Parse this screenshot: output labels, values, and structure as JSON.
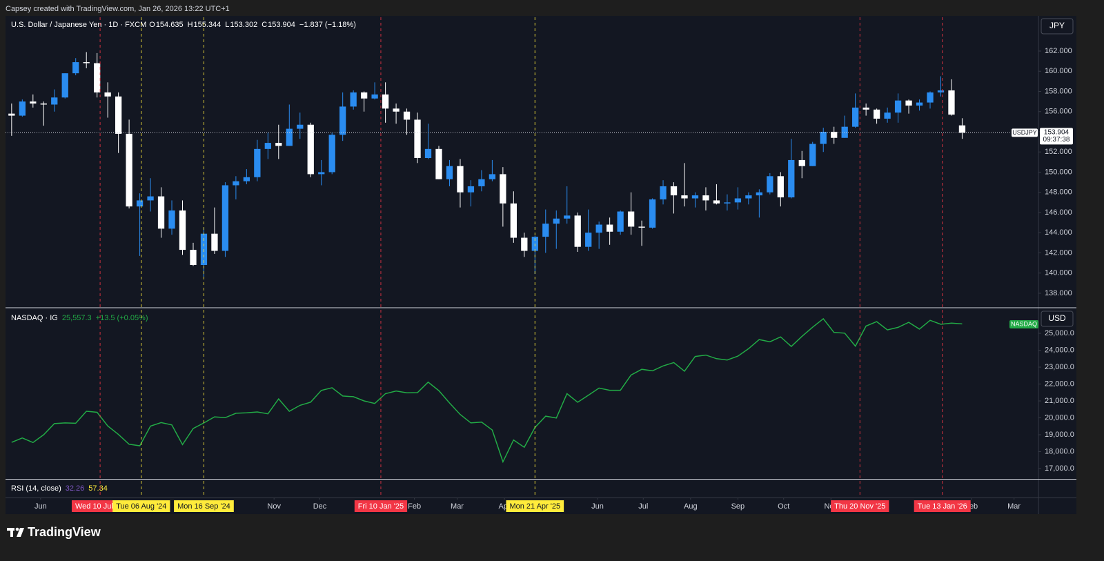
{
  "caption": "Capsey created with TradingView.com, Jan 26, 2026 13:22 UTC+1",
  "brand": "TradingView",
  "chart_data": [
    {
      "type": "candlestick",
      "title": "U.S. Dollar / Japanese Yen · 1D · FXCM",
      "legend_keys": [
        "O",
        "H",
        "L",
        "C"
      ],
      "change_label": "−1.837 (−1.18%)",
      "currency": "JPY",
      "symbol": "USDJPY",
      "countdown": "09:37:38",
      "up_color": "#2a8cf0",
      "down_color": "#ffffff",
      "x": [
        "2024-05-13",
        "2024-05-20",
        "2024-05-27",
        "2024-06-03",
        "2024-06-10",
        "2024-06-17",
        "2024-06-24",
        "2024-07-01",
        "2024-07-08",
        "2024-07-15",
        "2024-07-22",
        "2024-07-29",
        "2024-08-05",
        "2024-08-12",
        "2024-08-19",
        "2024-08-26",
        "2024-09-02",
        "2024-09-09",
        "2024-09-16",
        "2024-09-23",
        "2024-09-30",
        "2024-10-07",
        "2024-10-14",
        "2024-10-21",
        "2024-10-28",
        "2024-11-04",
        "2024-11-11",
        "2024-11-18",
        "2024-11-25",
        "2024-12-02",
        "2024-12-09",
        "2024-12-16",
        "2024-12-23",
        "2024-12-30",
        "2025-01-06",
        "2025-01-13",
        "2025-01-20",
        "2025-01-27",
        "2025-02-03",
        "2025-02-10",
        "2025-02-17",
        "2025-02-24",
        "2025-03-03",
        "2025-03-10",
        "2025-03-17",
        "2025-03-24",
        "2025-03-31",
        "2025-04-07",
        "2025-04-14",
        "2025-04-21",
        "2025-04-28",
        "2025-05-05",
        "2025-05-12",
        "2025-05-19",
        "2025-05-26",
        "2025-06-02",
        "2025-06-09",
        "2025-06-16",
        "2025-06-23",
        "2025-06-30",
        "2025-07-07",
        "2025-07-14",
        "2025-07-21",
        "2025-07-28",
        "2025-08-04",
        "2025-08-11",
        "2025-08-18",
        "2025-08-25",
        "2025-09-01",
        "2025-09-08",
        "2025-09-15",
        "2025-09-22",
        "2025-09-29",
        "2025-10-06",
        "2025-10-13",
        "2025-10-20",
        "2025-10-27",
        "2025-11-03",
        "2025-11-10",
        "2025-11-17",
        "2025-11-24",
        "2025-12-01",
        "2025-12-08",
        "2025-12-15",
        "2025-12-22",
        "2025-12-29",
        "2026-01-05",
        "2026-01-12",
        "2026-01-19",
        "2026-01-26"
      ],
      "open": [
        155.8,
        155.6,
        157.0,
        156.8,
        156.7,
        157.4,
        159.8,
        160.9,
        160.8,
        157.9,
        157.5,
        153.8,
        146.6,
        147.2,
        147.6,
        144.4,
        146.2,
        142.3,
        140.8,
        143.9,
        142.2,
        148.7,
        149.1,
        149.5,
        152.3,
        152.9,
        152.6,
        154.3,
        154.7,
        149.8,
        150.0,
        153.7,
        156.5,
        157.9,
        157.3,
        157.7,
        156.3,
        156.0,
        155.2,
        151.4,
        152.3,
        149.3,
        150.6,
        148.0,
        148.6,
        149.3,
        149.8,
        146.9,
        143.5,
        142.2,
        143.6,
        144.9,
        145.4,
        145.7,
        142.6,
        144.0,
        144.8,
        144.1,
        146.1,
        144.6,
        144.5,
        147.3,
        148.6,
        147.7,
        147.4,
        147.7,
        147.2,
        146.9,
        147.0,
        147.4,
        147.7,
        148.0,
        149.6,
        147.5,
        151.2,
        150.6,
        152.8,
        154.0,
        153.4,
        154.5,
        156.4,
        156.2,
        155.3,
        155.9,
        157.1,
        156.6,
        156.9,
        157.9,
        158.1,
        154.635
      ],
      "high": [
        156.8,
        157.2,
        157.7,
        157.0,
        158.2,
        159.8,
        161.3,
        161.9,
        161.8,
        158.9,
        157.9,
        155.2,
        147.9,
        149.4,
        148.5,
        147.2,
        147.2,
        143.0,
        144.5,
        146.5,
        149.0,
        149.6,
        150.3,
        153.2,
        153.9,
        154.7,
        156.7,
        155.9,
        154.9,
        151.2,
        153.9,
        157.9,
        158.1,
        158.0,
        158.9,
        158.9,
        156.8,
        156.3,
        155.9,
        154.8,
        152.6,
        151.2,
        151.3,
        149.2,
        150.2,
        151.2,
        150.5,
        148.1,
        144.0,
        143.7,
        146.3,
        146.2,
        148.6,
        146.0,
        146.3,
        145.1,
        145.5,
        146.2,
        148.0,
        145.2,
        147.4,
        149.2,
        149.0,
        150.9,
        148.0,
        148.5,
        148.8,
        147.8,
        148.5,
        148.0,
        148.3,
        149.9,
        150.0,
        153.3,
        152.1,
        153.0,
        154.4,
        154.5,
        155.6,
        157.8,
        156.8,
        156.3,
        156.4,
        157.8,
        157.2,
        157.2,
        158.0,
        159.5,
        159.2,
        155.344
      ],
      "low": [
        153.6,
        155.5,
        156.4,
        154.6,
        156.0,
        157.3,
        159.6,
        160.3,
        157.4,
        155.4,
        151.9,
        146.4,
        141.7,
        146.1,
        143.5,
        143.8,
        141.8,
        140.7,
        139.6,
        141.9,
        141.6,
        147.3,
        148.8,
        149.1,
        151.3,
        151.3,
        152.6,
        153.3,
        149.5,
        148.7,
        149.8,
        153.1,
        156.2,
        156.0,
        157.2,
        154.9,
        154.8,
        153.7,
        150.9,
        151.3,
        149.3,
        148.6,
        146.5,
        146.6,
        148.1,
        149.1,
        144.6,
        143.0,
        141.6,
        139.9,
        142.0,
        142.4,
        144.9,
        142.1,
        142.2,
        142.4,
        142.8,
        143.8,
        143.8,
        142.7,
        144.4,
        146.8,
        145.9,
        146.6,
        146.5,
        146.2,
        146.8,
        146.2,
        146.3,
        146.8,
        145.5,
        147.8,
        146.6,
        147.4,
        149.4,
        150.6,
        152.0,
        152.8,
        153.4,
        154.4,
        155.6,
        154.8,
        154.9,
        154.9,
        155.8,
        156.1,
        156.3,
        157.5,
        155.6,
        153.302
      ],
      "close": [
        155.6,
        157.0,
        156.8,
        156.7,
        157.4,
        159.8,
        160.9,
        160.8,
        157.9,
        157.5,
        153.8,
        146.6,
        147.2,
        147.6,
        144.4,
        146.2,
        142.3,
        140.8,
        143.9,
        142.2,
        148.7,
        149.1,
        149.5,
        152.3,
        152.9,
        152.6,
        154.3,
        154.7,
        149.8,
        150.0,
        153.7,
        156.5,
        157.9,
        157.3,
        157.7,
        156.3,
        156.0,
        155.2,
        151.4,
        152.3,
        149.3,
        150.6,
        148.0,
        148.6,
        149.3,
        149.8,
        146.9,
        143.5,
        142.2,
        143.6,
        144.9,
        145.4,
        145.7,
        142.6,
        144.0,
        144.8,
        144.1,
        146.1,
        144.6,
        144.5,
        147.3,
        148.6,
        147.7,
        147.4,
        147.7,
        147.2,
        146.9,
        147.0,
        147.4,
        147.7,
        148.0,
        149.6,
        147.5,
        151.2,
        150.6,
        152.8,
        154.0,
        153.4,
        154.5,
        156.4,
        156.2,
        155.3,
        155.9,
        157.1,
        156.6,
        156.9,
        157.9,
        158.1,
        155.7,
        153.904
      ],
      "xlim": [
        "2024-05-09",
        "2026-03-17"
      ],
      "xticks": [
        {
          "value": "2024-06-01",
          "label": "Jun"
        },
        {
          "value": "2024-11-01",
          "label": "Nov"
        },
        {
          "value": "2024-12-01",
          "label": "Dec"
        },
        {
          "value": "2025-02-01",
          "label": "Feb"
        },
        {
          "value": "2025-03-01",
          "label": "Mar"
        },
        {
          "value": "2025-04-01",
          "label": "Apr"
        },
        {
          "value": "2025-06-01",
          "label": "Jun"
        },
        {
          "value": "2025-07-01",
          "label": "Jul"
        },
        {
          "value": "2025-08-01",
          "label": "Aug"
        },
        {
          "value": "2025-09-01",
          "label": "Sep"
        },
        {
          "value": "2025-10-01",
          "label": "Oct"
        },
        {
          "value": "2025-11-01",
          "label": "Nov"
        },
        {
          "value": "2026-02-01",
          "label": "Feb"
        },
        {
          "value": "2026-03-01",
          "label": "Mar"
        }
      ],
      "markers": [
        {
          "date": "2024-07-10",
          "label": "Wed 10 Jul '24",
          "color": "#f23645"
        },
        {
          "date": "2024-08-06",
          "label": "Tue 06 Aug '24",
          "color": "#ffeb3b"
        },
        {
          "date": "2024-09-16",
          "label": "Mon 16 Sep '24",
          "color": "#ffeb3b"
        },
        {
          "date": "2025-01-10",
          "label": "Fri 10 Jan '25",
          "color": "#f23645"
        },
        {
          "date": "2025-04-21",
          "label": "Mon 21 Apr '25",
          "color": "#ffeb3b"
        },
        {
          "date": "2025-11-20",
          "label": "Thu 20 Nov '25",
          "color": "#f23645"
        },
        {
          "date": "2026-01-13",
          "label": "Tue 13 Jan '26",
          "color": "#f23645"
        }
      ],
      "ylim": [
        136.63,
        165.35
      ],
      "yticks": [
        {
          "value": 138,
          "label": "138.000"
        },
        {
          "value": 140,
          "label": "140.000"
        },
        {
          "value": 142,
          "label": "142.000"
        },
        {
          "value": 144,
          "label": "144.000"
        },
        {
          "value": 146,
          "label": "146.000"
        },
        {
          "value": 148,
          "label": "148.000"
        },
        {
          "value": 150,
          "label": "150.000"
        },
        {
          "value": 152,
          "label": "152.000"
        },
        {
          "value": 154,
          "label": "154.000"
        },
        {
          "value": 156,
          "label": "156.000"
        },
        {
          "value": 158,
          "label": "158.000"
        },
        {
          "value": 160,
          "label": "160.000"
        },
        {
          "value": 162,
          "label": "162.000"
        }
      ]
    },
    {
      "type": "line",
      "title": "NASDAQ · IG",
      "legend_values": [
        "25,557.3",
        "+13.5 (+0.05%)"
      ],
      "currency": "USD",
      "series": [
        {
          "name": "NASDAQ",
          "color": "#22ab46",
          "values": [
            18550,
            18810,
            18540,
            19000,
            19660,
            19700,
            19680,
            20390,
            20330,
            19520,
            19020,
            18440,
            18350,
            19510,
            19720,
            19580,
            18420,
            19370,
            19700,
            20060,
            20010,
            20270,
            20300,
            20350,
            20240,
            21120,
            20390,
            20740,
            20930,
            21620,
            21780,
            21290,
            21250,
            21000,
            20850,
            21430,
            21590,
            21480,
            21490,
            22110,
            21610,
            20880,
            20200,
            19700,
            19750,
            19280,
            17400,
            18690,
            18260,
            19430,
            20100,
            19990,
            21430,
            20920,
            21340,
            21760,
            21630,
            21630,
            22530,
            22870,
            22780,
            23070,
            23270,
            22760,
            23630,
            23710,
            23500,
            23420,
            23650,
            24090,
            24630,
            24500,
            24790,
            24220,
            24820,
            25360,
            25860,
            25050,
            25010,
            24240,
            25430,
            25690,
            25200,
            25350,
            25650,
            25250,
            25770,
            25530,
            25600,
            25557.3
          ]
        }
      ],
      "ylim": [
        16390,
        26470
      ],
      "yticks": [
        {
          "value": 17000,
          "label": "17,000.0"
        },
        {
          "value": 18000,
          "label": "18,000.0"
        },
        {
          "value": 19000,
          "label": "19,000.0"
        },
        {
          "value": 20000,
          "label": "20,000.0"
        },
        {
          "value": 21000,
          "label": "21,000.0"
        },
        {
          "value": 22000,
          "label": "22,000.0"
        },
        {
          "value": 23000,
          "label": "23,000.0"
        },
        {
          "value": 24000,
          "label": "24,000.0"
        },
        {
          "value": 25000,
          "label": "25,000.0"
        }
      ]
    },
    {
      "type": "indicator",
      "title": "RSI (14, close)",
      "legend_values": [
        "32.26",
        "57.34"
      ],
      "legend_colors": [
        "#7e57c2",
        "#ffeb3b"
      ]
    }
  ]
}
